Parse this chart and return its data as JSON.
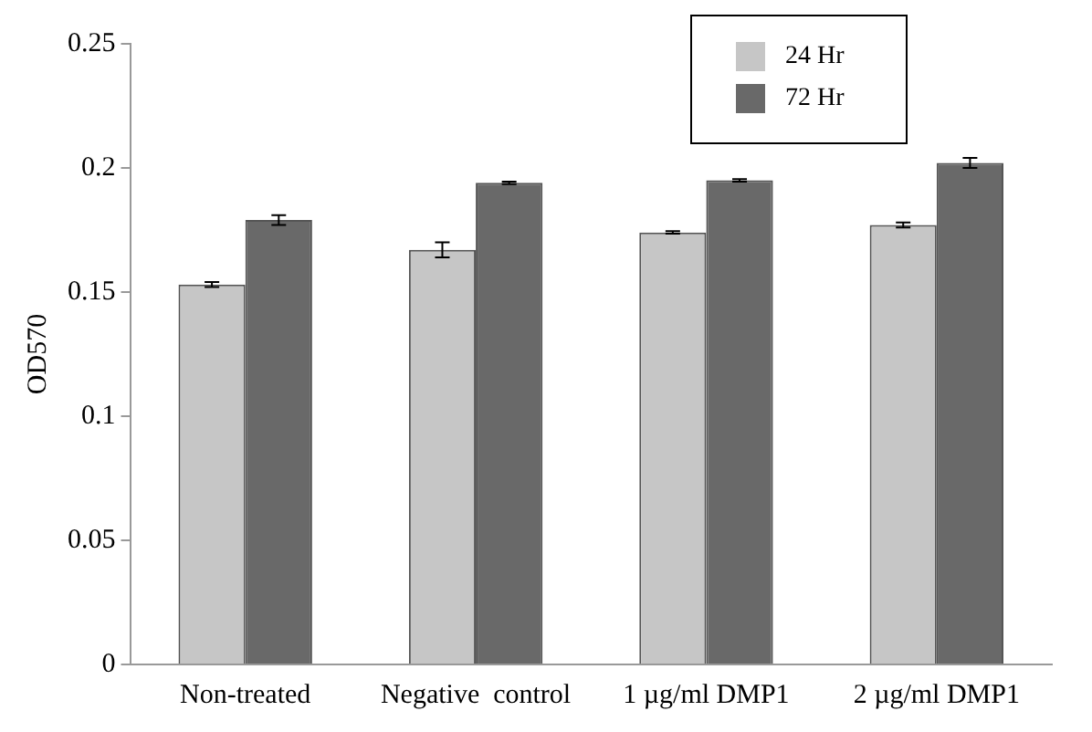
{
  "chart_data": {
    "type": "bar",
    "ylabel": "OD570",
    "categories": [
      "Non-treated",
      "Negative  control",
      "1 µg/ml DMP1",
      "2 µg/ml DMP1"
    ],
    "series": [
      {
        "name": "24 Hr",
        "color": "#c6c6c6",
        "values": [
          0.153,
          0.167,
          0.174,
          0.177
        ],
        "errors": [
          0.001,
          0.003,
          0.0005,
          0.001
        ]
      },
      {
        "name": "72 Hr",
        "color": "#696969",
        "values": [
          0.179,
          0.194,
          0.195,
          0.202
        ],
        "errors": [
          0.002,
          0.0005,
          0.0005,
          0.002
        ]
      }
    ],
    "ylim": [
      0,
      0.25
    ],
    "yticks": [
      0,
      0.05,
      0.1,
      0.15,
      0.2,
      0.25
    ],
    "grid": false,
    "legend": "top right"
  }
}
